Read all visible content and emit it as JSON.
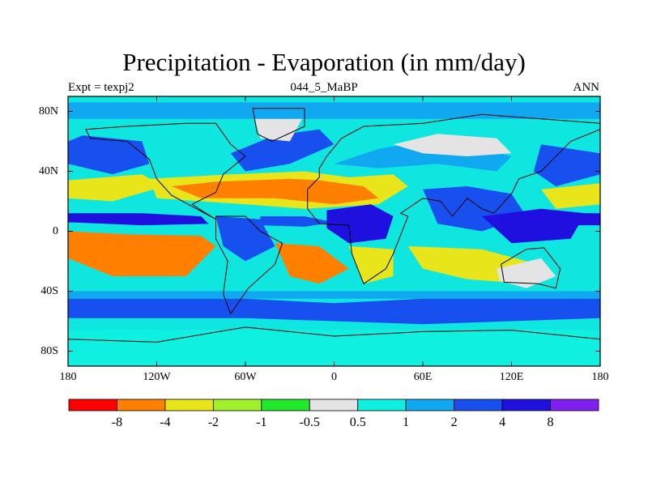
{
  "title": "Precipitation - Evaporation (in mm/day)",
  "subtitle_left": "Expt = texpj2",
  "subtitle_center": "044_5_MaBP",
  "subtitle_right": "ANN",
  "chart_data": {
    "type": "heatmap",
    "variable": "Precipitation - Evaporation",
    "units": "mm/day",
    "period": "ANN",
    "experiment": "texpj2",
    "age": "044_5_MaBP",
    "xlim": [
      -180,
      180
    ],
    "ylim": [
      -90,
      90
    ],
    "lon_ticks": [
      {
        "value": -180,
        "label": "180"
      },
      {
        "value": -120,
        "label": "120W"
      },
      {
        "value": -60,
        "label": "60W"
      },
      {
        "value": 0,
        "label": "0"
      },
      {
        "value": 60,
        "label": "60E"
      },
      {
        "value": 120,
        "label": "120E"
      },
      {
        "value": 180,
        "label": "180"
      }
    ],
    "lat_ticks": [
      {
        "value": 80,
        "label": "80N"
      },
      {
        "value": 40,
        "label": "40N"
      },
      {
        "value": 0,
        "label": "0"
      },
      {
        "value": -40,
        "label": "40S"
      },
      {
        "value": -80,
        "label": "80S"
      }
    ],
    "levels": [
      -8,
      -4,
      -2,
      -1,
      -0.5,
      0.5,
      1,
      2,
      4,
      8
    ],
    "level_labels": [
      "-8",
      "-4",
      "-2",
      "-1",
      "-0.5",
      "0.5",
      "1",
      "2",
      "4",
      "8"
    ],
    "colors": [
      "#ff0000",
      "#ff8000",
      "#e8e61a",
      "#a0f02a",
      "#20e82a",
      "#e4e4e4",
      "#10f0e0",
      "#10a8f0",
      "#1850f0",
      "#2010e0",
      "#8020f0"
    ],
    "background_color": "#10e6e0",
    "regions": [
      {
        "name": "n-pacific-storm-track",
        "category": 8,
        "polygon": [
          [
            -170,
            64
          ],
          [
            -130,
            60
          ],
          [
            -125,
            45
          ],
          [
            -150,
            38
          ],
          [
            -180,
            45
          ],
          [
            -180,
            60
          ]
        ]
      },
      {
        "name": "nw-pacific-storm-track",
        "category": 8,
        "polygon": [
          [
            140,
            58
          ],
          [
            180,
            52
          ],
          [
            180,
            38
          ],
          [
            150,
            30
          ],
          [
            135,
            40
          ]
        ]
      },
      {
        "name": "n-atlantic-storm-track",
        "category": 8,
        "polygon": [
          [
            -70,
            52
          ],
          [
            -40,
            64
          ],
          [
            -10,
            68
          ],
          [
            0,
            58
          ],
          [
            -30,
            45
          ],
          [
            -60,
            40
          ]
        ]
      },
      {
        "name": "n-pacific-mid-dry",
        "category": 2,
        "polygon": [
          [
            -180,
            34
          ],
          [
            -130,
            38
          ],
          [
            -115,
            30
          ],
          [
            -150,
            20
          ],
          [
            -180,
            22
          ]
        ]
      },
      {
        "name": "nw-pacific-mid-dry",
        "category": 2,
        "polygon": [
          [
            140,
            28
          ],
          [
            180,
            32
          ],
          [
            180,
            18
          ],
          [
            150,
            15
          ]
        ]
      },
      {
        "name": "n-subtropical-dry",
        "category": 2,
        "polygon": [
          [
            -125,
            35
          ],
          [
            -70,
            38
          ],
          [
            -20,
            40
          ],
          [
            10,
            36
          ],
          [
            40,
            38
          ],
          [
            50,
            30
          ],
          [
            30,
            18
          ],
          [
            -20,
            15
          ],
          [
            -60,
            18
          ],
          [
            -120,
            22
          ]
        ]
      },
      {
        "name": "n-africa-america-dry",
        "category": 1,
        "polygon": [
          [
            -110,
            30
          ],
          [
            -80,
            33
          ],
          [
            -30,
            35
          ],
          [
            -10,
            34
          ],
          [
            20,
            30
          ],
          [
            30,
            22
          ],
          [
            0,
            18
          ],
          [
            -40,
            22
          ],
          [
            -90,
            22
          ]
        ]
      },
      {
        "name": "eurasia-wet",
        "category": 7,
        "polygon": [
          [
            0,
            45
          ],
          [
            30,
            55
          ],
          [
            60,
            60
          ],
          [
            100,
            55
          ],
          [
            120,
            50
          ],
          [
            110,
            40
          ],
          [
            70,
            45
          ],
          [
            30,
            42
          ]
        ]
      },
      {
        "name": "siberia-neutral",
        "category": 5,
        "polygon": [
          [
            40,
            58
          ],
          [
            70,
            65
          ],
          [
            110,
            62
          ],
          [
            120,
            52
          ],
          [
            90,
            50
          ],
          [
            60,
            52
          ]
        ]
      },
      {
        "name": "s-asia-wet",
        "category": 8,
        "polygon": [
          [
            60,
            28
          ],
          [
            90,
            30
          ],
          [
            120,
            25
          ],
          [
            130,
            10
          ],
          [
            100,
            0
          ],
          [
            70,
            5
          ]
        ]
      },
      {
        "name": "maritime-wet",
        "category": 9,
        "polygon": [
          [
            100,
            10
          ],
          [
            140,
            15
          ],
          [
            170,
            12
          ],
          [
            160,
            -5
          ],
          [
            120,
            -8
          ]
        ]
      },
      {
        "name": "itcz-pacific",
        "category": 9,
        "polygon": [
          [
            -180,
            12
          ],
          [
            -130,
            12
          ],
          [
            -90,
            10
          ],
          [
            -85,
            5
          ],
          [
            -130,
            4
          ],
          [
            -180,
            6
          ]
        ]
      },
      {
        "name": "itcz-pacific-west",
        "category": 9,
        "polygon": [
          [
            130,
            12
          ],
          [
            180,
            12
          ],
          [
            180,
            4
          ],
          [
            140,
            4
          ]
        ]
      },
      {
        "name": "itcz-atlantic",
        "category": 8,
        "polygon": [
          [
            -50,
            10
          ],
          [
            -20,
            10
          ],
          [
            0,
            6
          ],
          [
            -20,
            3
          ],
          [
            -50,
            4
          ]
        ]
      },
      {
        "name": "central-africa-wet",
        "category": 9,
        "polygon": [
          [
            -5,
            14
          ],
          [
            25,
            18
          ],
          [
            40,
            10
          ],
          [
            35,
            -5
          ],
          [
            10,
            -8
          ],
          [
            -5,
            2
          ]
        ]
      },
      {
        "name": "amazon-wet",
        "category": 8,
        "polygon": [
          [
            -80,
            10
          ],
          [
            -50,
            8
          ],
          [
            -40,
            -10
          ],
          [
            -60,
            -20
          ],
          [
            -75,
            -10
          ]
        ]
      },
      {
        "name": "e-pacific-dry",
        "category": 1,
        "polygon": [
          [
            -180,
            0
          ],
          [
            -140,
            -2
          ],
          [
            -90,
            -3
          ],
          [
            -80,
            -10
          ],
          [
            -100,
            -30
          ],
          [
            -150,
            -30
          ],
          [
            -180,
            -18
          ]
        ]
      },
      {
        "name": "se-pacific-dry",
        "category": 1,
        "polygon": [
          [
            -160,
            -8
          ],
          [
            -110,
            -10
          ],
          [
            -95,
            -18
          ],
          [
            -110,
            -26
          ],
          [
            -150,
            -22
          ]
        ]
      },
      {
        "name": "s-atlantic-dry",
        "category": 1,
        "polygon": [
          [
            -40,
            -8
          ],
          [
            -10,
            -10
          ],
          [
            10,
            -25
          ],
          [
            -10,
            -35
          ],
          [
            -30,
            -30
          ]
        ]
      },
      {
        "name": "s-africa-dry",
        "category": 2,
        "polygon": [
          [
            10,
            -10
          ],
          [
            40,
            -12
          ],
          [
            40,
            -30
          ],
          [
            20,
            -35
          ]
        ]
      },
      {
        "name": "s-indian-dry",
        "category": 2,
        "polygon": [
          [
            50,
            -10
          ],
          [
            100,
            -12
          ],
          [
            130,
            -20
          ],
          [
            130,
            -35
          ],
          [
            90,
            -32
          ],
          [
            60,
            -25
          ]
        ]
      },
      {
        "name": "australia-dry",
        "category": 5,
        "polygon": [
          [
            110,
            -25
          ],
          [
            140,
            -18
          ],
          [
            150,
            -30
          ],
          [
            130,
            -38
          ],
          [
            112,
            -33
          ]
        ]
      },
      {
        "name": "s-ocean-storm",
        "category": 8,
        "polygon": [
          [
            -180,
            -45
          ],
          [
            -60,
            -45
          ],
          [
            0,
            -48
          ],
          [
            60,
            -45
          ],
          [
            180,
            -45
          ],
          [
            180,
            -58
          ],
          [
            60,
            -62
          ],
          [
            0,
            -60
          ],
          [
            -60,
            -58
          ],
          [
            -180,
            -58
          ]
        ]
      },
      {
        "name": "s-ocean-wet",
        "category": 7,
        "polygon": [
          [
            -180,
            -40
          ],
          [
            180,
            -40
          ],
          [
            180,
            -45
          ],
          [
            -180,
            -45
          ]
        ]
      },
      {
        "name": "antarctica",
        "category": 6,
        "polygon": [
          [
            -180,
            -66
          ],
          [
            180,
            -66
          ],
          [
            180,
            -90
          ],
          [
            -180,
            -90
          ]
        ]
      },
      {
        "name": "greenland",
        "category": 5,
        "polygon": [
          [
            -55,
            80
          ],
          [
            -20,
            78
          ],
          [
            -30,
            60
          ],
          [
            -50,
            62
          ]
        ]
      },
      {
        "name": "arctic-wet",
        "category": 7,
        "polygon": [
          [
            -180,
            86
          ],
          [
            180,
            86
          ],
          [
            180,
            75
          ],
          [
            -180,
            75
          ]
        ]
      }
    ],
    "coastlines": [
      {
        "name": "north-america",
        "polygon": [
          [
            -168,
            68
          ],
          [
            -140,
            70
          ],
          [
            -100,
            72
          ],
          [
            -80,
            72
          ],
          [
            -70,
            58
          ],
          [
            -60,
            50
          ],
          [
            -75,
            38
          ],
          [
            -80,
            26
          ],
          [
            -96,
            18
          ],
          [
            -90,
            14
          ],
          [
            -80,
            8
          ],
          [
            -95,
            16
          ],
          [
            -110,
            24
          ],
          [
            -120,
            35
          ],
          [
            -125,
            48
          ],
          [
            -140,
            60
          ],
          [
            -165,
            62
          ]
        ]
      },
      {
        "name": "south-america",
        "polygon": [
          [
            -80,
            10
          ],
          [
            -60,
            10
          ],
          [
            -50,
            0
          ],
          [
            -35,
            -8
          ],
          [
            -40,
            -22
          ],
          [
            -58,
            -38
          ],
          [
            -70,
            -55
          ],
          [
            -75,
            -42
          ],
          [
            -72,
            -20
          ],
          [
            -80,
            -5
          ]
        ]
      },
      {
        "name": "eurasia-africa",
        "polygon": [
          [
            -10,
            36
          ],
          [
            -18,
            28
          ],
          [
            -18,
            15
          ],
          [
            -10,
            5
          ],
          [
            10,
            4
          ],
          [
            12,
            -15
          ],
          [
            20,
            -35
          ],
          [
            35,
            -25
          ],
          [
            40,
            -15
          ],
          [
            50,
            10
          ],
          [
            45,
            12
          ],
          [
            60,
            22
          ],
          [
            72,
            20
          ],
          [
            80,
            10
          ],
          [
            90,
            22
          ],
          [
            100,
            15
          ],
          [
            108,
            12
          ],
          [
            120,
            25
          ],
          [
            125,
            35
          ],
          [
            140,
            40
          ],
          [
            160,
            60
          ],
          [
            180,
            68
          ],
          [
            180,
            72
          ],
          [
            140,
            75
          ],
          [
            100,
            78
          ],
          [
            60,
            72
          ],
          [
            20,
            70
          ],
          [
            5,
            62
          ],
          [
            -5,
            50
          ],
          [
            -10,
            42
          ]
        ]
      },
      {
        "name": "australia",
        "polygon": [
          [
            113,
            -22
          ],
          [
            130,
            -12
          ],
          [
            142,
            -11
          ],
          [
            153,
            -25
          ],
          [
            150,
            -38
          ],
          [
            138,
            -35
          ],
          [
            115,
            -34
          ]
        ]
      },
      {
        "name": "antarctica-coast",
        "polygon": [
          [
            -180,
            -72
          ],
          [
            -120,
            -74
          ],
          [
            -60,
            -64
          ],
          [
            0,
            -70
          ],
          [
            60,
            -67
          ],
          [
            120,
            -66
          ],
          [
            180,
            -72
          ],
          [
            180,
            -90
          ],
          [
            -180,
            -90
          ]
        ]
      },
      {
        "name": "greenland-coast",
        "polygon": [
          [
            -55,
            82
          ],
          [
            -20,
            82
          ],
          [
            -20,
            70
          ],
          [
            -42,
            60
          ],
          [
            -52,
            65
          ]
        ]
      }
    ]
  }
}
